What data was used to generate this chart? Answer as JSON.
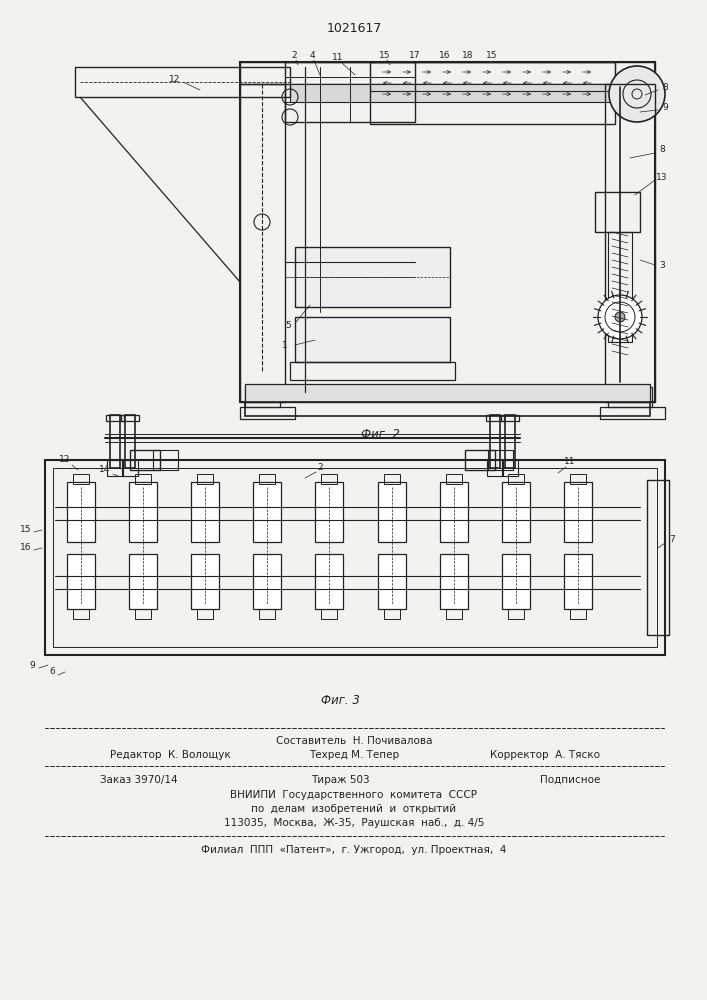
{
  "patent_number": "1021617",
  "fig2_label": "Фиг. 2",
  "fig3_label": "Фиг. 3",
  "bg_color": "#f2f2ee",
  "line_color": "#222222",
  "footer": {
    "row1_center": "Составитель  Н. Почивалова",
    "row2_left": "Редактор  К. Волощук",
    "row2_mid": "Техред М. Тепер",
    "row2_right": "Корректор  А. Тяско",
    "row3_left": "Заказ 3970/14",
    "row3_mid": "Тираж 503",
    "row3_right": "Подписное",
    "row4": "ВНИИПИ  Государственного  комитета  СССР",
    "row5": "по  делам  изобретений  и  открытий",
    "row6": "113035,  Москва,  Ж-35,  Раушская  наб.,  д. 4/5",
    "row7": "Филиал  ППП  «Патент»,  г. Ужгород,  ул. Проектная,  4"
  }
}
